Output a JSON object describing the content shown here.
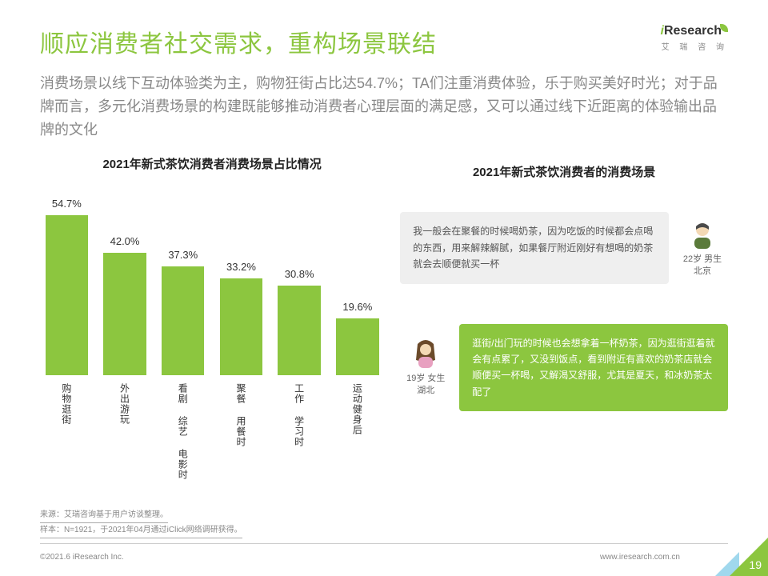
{
  "header": {
    "title": "顺应消费者社交需求，重构场景联结",
    "brand_name": "Research",
    "brand_sub": "艾 瑞 咨 询"
  },
  "subtitle": "消费场景以线下互动体验类为主，购物狂街占比达54.7%；TA们注重消费体验，乐于购买美好时光；对于品牌而言，多元化消费场景的构建既能够推动消费者心理层面的满足感，又可以通过线下近距离的体验输出品牌的文化",
  "chart": {
    "type": "bar",
    "title": "2021年新式茶饮消费者消费场景占比情况",
    "categories": [
      "购物逛街",
      "外出游玩",
      "看剧 综艺 电影时",
      "聚餐 用餐时",
      "工作 学习时",
      "运动健身后"
    ],
    "values": [
      54.7,
      42.0,
      37.3,
      33.2,
      30.8,
      19.6
    ],
    "value_labels": [
      "54.7%",
      "42.0%",
      "37.3%",
      "33.2%",
      "30.8%",
      "19.6%"
    ],
    "ymax": 54.7,
    "bar_color": "#8cc63f",
    "label_fontsize": 13,
    "xlabel_fontsize": 12,
    "background_color": "#ffffff"
  },
  "right": {
    "title": "2021年新式茶饮消费者的消费场景",
    "quotes": [
      {
        "text": "我一般会在聚餐的时候喝奶茶，因为吃饭的时候都会点喝的东西，用来解辣解腻，如果餐厅附近刚好有想喝的奶茶就会去顺便就买一杯",
        "persona_age": "22岁 男生",
        "persona_loc": "北京",
        "style": "gray",
        "avatar_kind": "male"
      },
      {
        "text": "逛街/出门玩的时候也会想拿着一杯奶茶，因为逛街逛着就会有点累了，又没到饭点，看到附近有喜欢的奶茶店就会顺便买一杯喝，又解渴又舒服，尤其是夏天，和冰奶茶太配了",
        "persona_age": "19岁 女生",
        "persona_loc": "湖北",
        "style": "green",
        "avatar_kind": "female"
      }
    ]
  },
  "footer": {
    "source1": "来源：艾瑞咨询基于用户访谈整理。",
    "source2": "样本：N=1921，于2021年04月通过iClick网络调研获得。",
    "copyright": "©2021.6 iResearch Inc.",
    "url": "www.iresearch.com.cn",
    "page_num": "19"
  },
  "colors": {
    "accent": "#8cc63f",
    "text_secondary": "#888888",
    "bubble_gray": "#efefef"
  }
}
